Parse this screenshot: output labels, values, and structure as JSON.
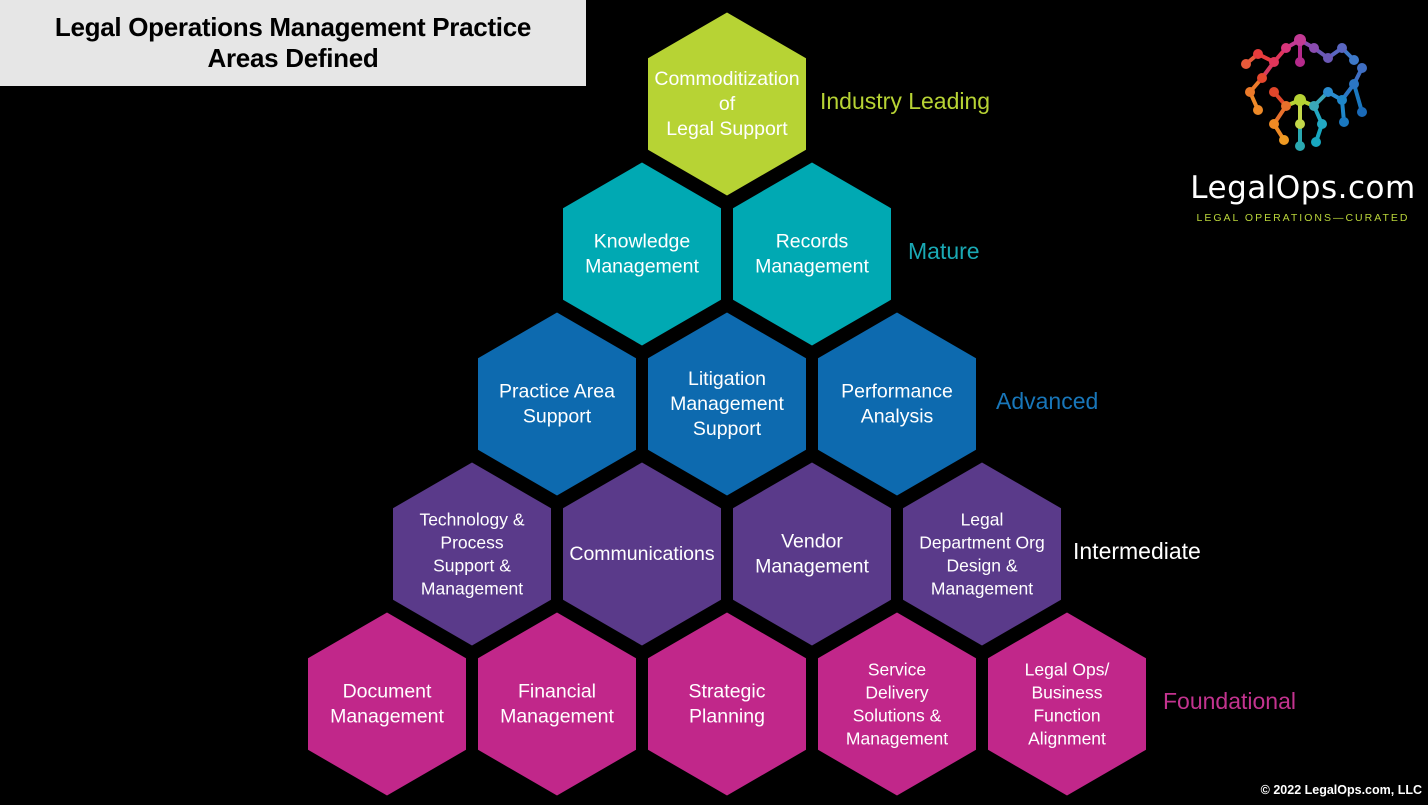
{
  "title": "Legal Operations Management Practice Areas Defined",
  "title_lines": [
    "Legal Operations Management Practice",
    "Areas Defined"
  ],
  "levels": [
    {
      "name": "Industry Leading",
      "color": "#b7d334",
      "label_color": "#b7d334",
      "hexes": [
        {
          "lines": [
            "Commoditization",
            "of",
            "Legal Support"
          ]
        }
      ]
    },
    {
      "name": "Mature",
      "color": "#00a9b3",
      "label_color": "#1aa9b4",
      "hexes": [
        {
          "lines": [
            "Knowledge",
            "Management"
          ]
        },
        {
          "lines": [
            "Records",
            "Management"
          ]
        }
      ]
    },
    {
      "name": "Advanced",
      "color": "#0d6aaf",
      "label_color": "#1876b9",
      "hexes": [
        {
          "lines": [
            "Practice Area",
            "Support"
          ]
        },
        {
          "lines": [
            "Litigation",
            "Management",
            "Support"
          ]
        },
        {
          "lines": [
            "Performance",
            "Analysis"
          ]
        }
      ]
    },
    {
      "name": "Intermediate",
      "color": "#5a3a8a",
      "label_color": "#ffffff",
      "hexes": [
        {
          "lines": [
            "Technology &",
            "Process",
            "Support &",
            "Management"
          ]
        },
        {
          "lines": [
            "Communications"
          ]
        },
        {
          "lines": [
            "Vendor",
            "Management"
          ]
        },
        {
          "lines": [
            "Legal",
            "Department Org",
            "Design &",
            "Management"
          ]
        }
      ]
    },
    {
      "name": "Foundational",
      "color": "#c1278a",
      "label_color": "#c3338f",
      "hexes": [
        {
          "lines": [
            "Document",
            "Management"
          ]
        },
        {
          "lines": [
            "Financial",
            "Management"
          ]
        },
        {
          "lines": [
            "Strategic",
            "Planning"
          ]
        },
        {
          "lines": [
            "Service",
            "Delivery",
            "Solutions &",
            "Management"
          ]
        },
        {
          "lines": [
            "Legal Ops/",
            "Business",
            "Function",
            "Alignment"
          ]
        }
      ]
    }
  ],
  "logo": {
    "name": "LegalOps.com",
    "tagline": "LEGAL OPERATIONS—CURATED",
    "icon": "network-hexagon-logo"
  },
  "copyright": "© 2022 LegalOps.com, LLC"
}
